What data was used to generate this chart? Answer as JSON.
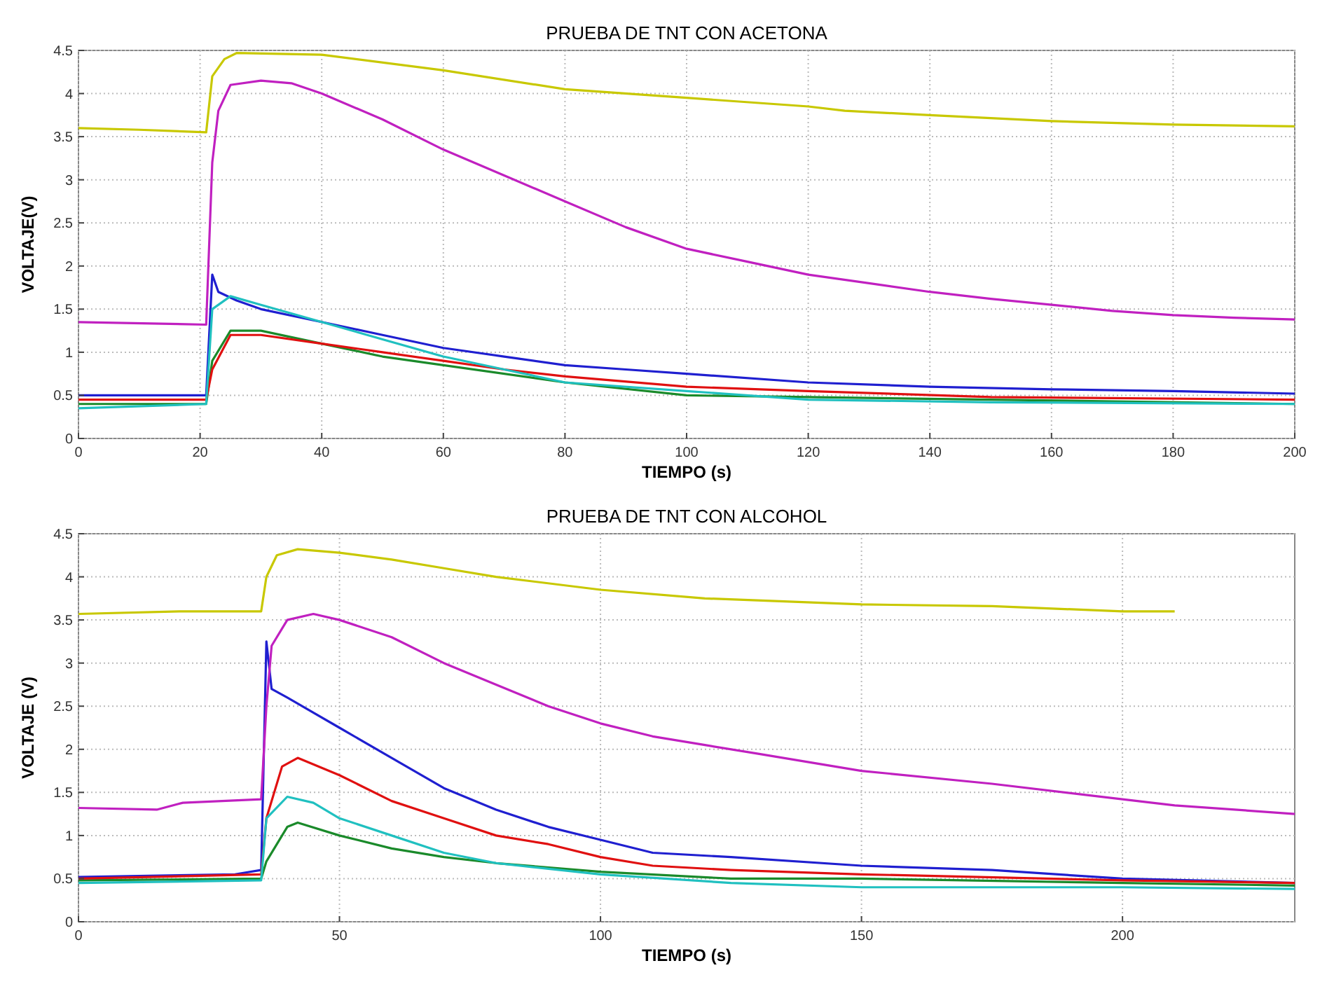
{
  "chart_data": [
    {
      "type": "line",
      "title": "PRUEBA DE TNT CON ACETONA",
      "xlabel": "TIEMPO (s)",
      "ylabel": "VOLTAJE(V)",
      "xlim": [
        0,
        200
      ],
      "xticks": [
        0,
        20,
        40,
        60,
        80,
        100,
        120,
        140,
        160,
        180,
        200
      ],
      "ylim": [
        0,
        4.5
      ],
      "yticks": [
        0,
        0.5,
        1,
        1.5,
        2,
        2.5,
        3,
        3.5,
        4,
        4.5
      ],
      "grid": true,
      "series": [
        {
          "color": "#1f1fd0",
          "x": [
            0,
            21,
            22,
            23,
            26,
            30,
            40,
            50,
            60,
            70,
            80,
            90,
            100,
            120,
            140,
            160,
            180,
            200
          ],
          "values": [
            0.5,
            0.5,
            1.9,
            1.7,
            1.6,
            1.5,
            1.35,
            1.2,
            1.05,
            0.95,
            0.85,
            0.8,
            0.75,
            0.65,
            0.6,
            0.57,
            0.55,
            0.52
          ]
        },
        {
          "color": "#1a8a2a",
          "x": [
            0,
            21,
            22,
            25,
            30,
            40,
            50,
            60,
            80,
            100,
            150,
            200
          ],
          "values": [
            0.4,
            0.4,
            0.9,
            1.25,
            1.25,
            1.1,
            0.95,
            0.85,
            0.65,
            0.5,
            0.45,
            0.4
          ]
        },
        {
          "color": "#e01010",
          "x": [
            0,
            21,
            22,
            25,
            30,
            40,
            50,
            60,
            70,
            80,
            100,
            120,
            150,
            200
          ],
          "values": [
            0.45,
            0.45,
            0.8,
            1.2,
            1.2,
            1.1,
            1.0,
            0.9,
            0.8,
            0.72,
            0.6,
            0.55,
            0.48,
            0.45
          ]
        },
        {
          "color": "#20c0c0",
          "x": [
            0,
            21,
            22,
            25,
            30,
            40,
            50,
            60,
            70,
            80,
            100,
            120,
            150,
            200
          ],
          "values": [
            0.35,
            0.4,
            1.5,
            1.65,
            1.55,
            1.35,
            1.15,
            0.95,
            0.8,
            0.65,
            0.55,
            0.45,
            0.42,
            0.4
          ]
        },
        {
          "color": "#c020c0",
          "x": [
            0,
            21,
            22,
            23,
            25,
            30,
            35,
            40,
            50,
            60,
            70,
            80,
            90,
            100,
            110,
            120,
            130,
            140,
            150,
            160,
            170,
            180,
            190,
            200
          ],
          "values": [
            1.35,
            1.32,
            3.2,
            3.8,
            4.1,
            4.15,
            4.12,
            4.0,
            3.7,
            3.35,
            3.05,
            2.75,
            2.45,
            2.2,
            2.05,
            1.9,
            1.8,
            1.7,
            1.62,
            1.55,
            1.48,
            1.43,
            1.4,
            1.38
          ]
        },
        {
          "color": "#c8c800",
          "x": [
            0,
            10,
            21,
            22,
            24,
            26,
            40,
            60,
            80,
            100,
            120,
            126,
            140,
            160,
            180,
            200
          ],
          "values": [
            3.6,
            3.58,
            3.55,
            4.2,
            4.4,
            4.47,
            4.45,
            4.27,
            4.05,
            3.95,
            3.85,
            3.8,
            3.75,
            3.68,
            3.64,
            3.62
          ]
        }
      ]
    },
    {
      "type": "line",
      "title": "PRUEBA DE TNT CON ALCOHOL",
      "xlabel": "TIEMPO (s)",
      "ylabel": "VOLTAJE (V)",
      "xlim": [
        0,
        233
      ],
      "xticks": [
        0,
        50,
        100,
        150,
        200
      ],
      "ylim": [
        0,
        4.5
      ],
      "yticks": [
        0,
        0.5,
        1,
        1.5,
        2,
        2.5,
        3,
        3.5,
        4,
        4.5
      ],
      "grid": true,
      "series": [
        {
          "color": "#1f1fd0",
          "x": [
            0,
            30,
            35,
            36,
            37,
            40,
            50,
            60,
            70,
            80,
            90,
            100,
            110,
            125,
            150,
            175,
            200,
            233
          ],
          "values": [
            0.52,
            0.55,
            0.6,
            3.25,
            2.7,
            2.6,
            2.25,
            1.9,
            1.55,
            1.3,
            1.1,
            0.95,
            0.8,
            0.75,
            0.65,
            0.6,
            0.5,
            0.45
          ]
        },
        {
          "color": "#1a8a2a",
          "x": [
            0,
            35,
            36,
            40,
            42,
            50,
            60,
            70,
            80,
            100,
            125,
            150,
            200,
            233
          ],
          "values": [
            0.48,
            0.5,
            0.7,
            1.1,
            1.15,
            1.0,
            0.85,
            0.75,
            0.68,
            0.58,
            0.5,
            0.5,
            0.45,
            0.42
          ]
        },
        {
          "color": "#e01010",
          "x": [
            0,
            35,
            36,
            39,
            42,
            50,
            60,
            70,
            80,
            90,
            100,
            110,
            125,
            150,
            200,
            233
          ],
          "values": [
            0.5,
            0.55,
            1.2,
            1.8,
            1.9,
            1.7,
            1.4,
            1.2,
            1.0,
            0.9,
            0.75,
            0.65,
            0.6,
            0.55,
            0.48,
            0.45
          ]
        },
        {
          "color": "#20c0c0",
          "x": [
            0,
            35,
            36,
            40,
            45,
            50,
            60,
            70,
            80,
            100,
            125,
            150,
            200,
            233
          ],
          "values": [
            0.45,
            0.48,
            1.2,
            1.45,
            1.38,
            1.2,
            1.0,
            0.8,
            0.68,
            0.55,
            0.45,
            0.4,
            0.4,
            0.38
          ]
        },
        {
          "color": "#c020c0",
          "x": [
            0,
            15,
            20,
            35,
            36,
            37,
            40,
            45,
            50,
            60,
            70,
            80,
            90,
            100,
            110,
            120,
            130,
            150,
            175,
            200,
            210,
            233
          ],
          "values": [
            1.32,
            1.3,
            1.38,
            1.42,
            2.5,
            3.2,
            3.5,
            3.57,
            3.5,
            3.3,
            3.0,
            2.75,
            2.5,
            2.3,
            2.15,
            2.05,
            1.95,
            1.75,
            1.6,
            1.42,
            1.35,
            1.25
          ]
        },
        {
          "color": "#c8c800",
          "x": [
            0,
            20,
            35,
            36,
            38,
            42,
            50,
            60,
            70,
            80,
            100,
            120,
            150,
            175,
            200,
            210
          ],
          "values": [
            3.57,
            3.6,
            3.6,
            4.0,
            4.25,
            4.32,
            4.28,
            4.2,
            4.1,
            4.0,
            3.85,
            3.75,
            3.68,
            3.66,
            3.6,
            3.6
          ]
        }
      ]
    }
  ]
}
